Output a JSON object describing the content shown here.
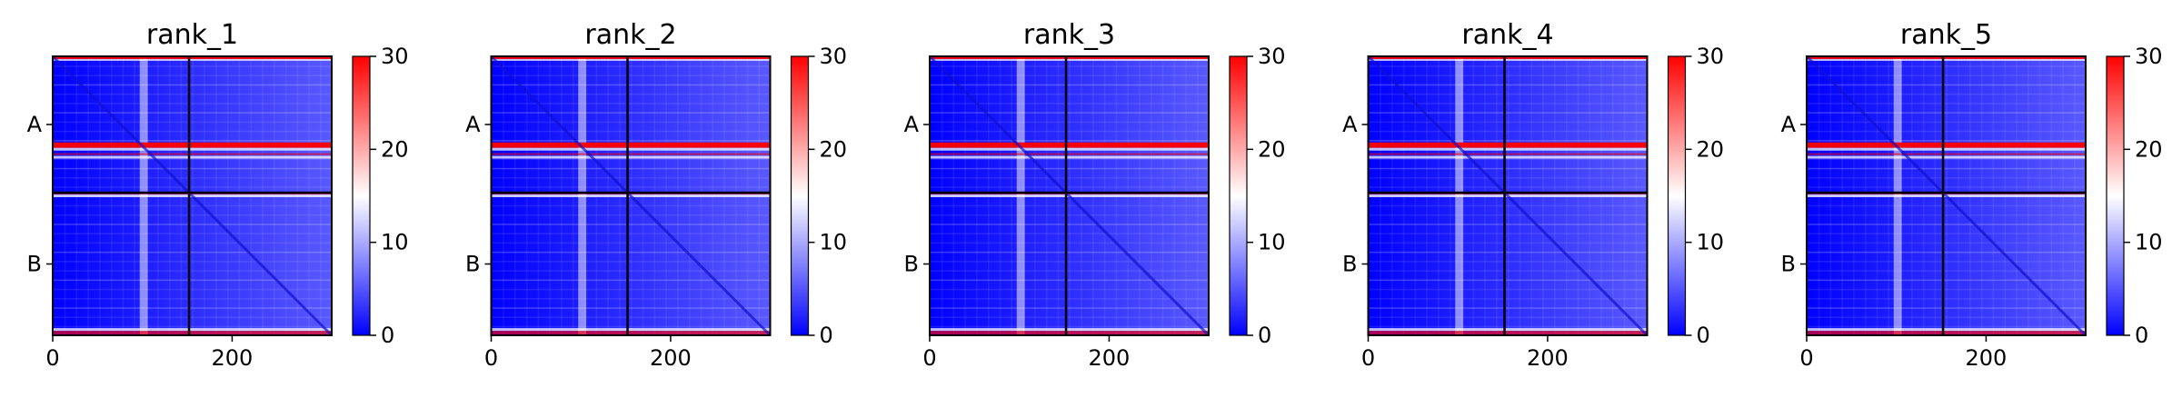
{
  "chart_data": [
    {
      "type": "heatmap",
      "title": "rank_1",
      "xticks": [
        "0",
        "200"
      ],
      "yticks": [
        "A",
        "B"
      ],
      "colorbar": {
        "min": 0,
        "max": 30,
        "ticks": [
          "0",
          "10",
          "20",
          "30"
        ],
        "colormap": "bwr"
      },
      "xlim": [
        0,
        311
      ],
      "chain_break": 152,
      "total_length": 311,
      "chains": [
        "A",
        "B"
      ]
    },
    {
      "type": "heatmap",
      "title": "rank_2",
      "xticks": [
        "0",
        "200"
      ],
      "yticks": [
        "A",
        "B"
      ],
      "colorbar": {
        "min": 0,
        "max": 30,
        "ticks": [
          "0",
          "10",
          "20",
          "30"
        ],
        "colormap": "bwr"
      },
      "xlim": [
        0,
        311
      ],
      "chain_break": 152,
      "total_length": 311,
      "chains": [
        "A",
        "B"
      ]
    },
    {
      "type": "heatmap",
      "title": "rank_3",
      "xticks": [
        "0",
        "200"
      ],
      "yticks": [
        "A",
        "B"
      ],
      "colorbar": {
        "min": 0,
        "max": 30,
        "ticks": [
          "0",
          "10",
          "20",
          "30"
        ],
        "colormap": "bwr"
      },
      "xlim": [
        0,
        311
      ],
      "chain_break": 152,
      "total_length": 311,
      "chains": [
        "A",
        "B"
      ]
    },
    {
      "type": "heatmap",
      "title": "rank_4",
      "xticks": [
        "0",
        "200"
      ],
      "yticks": [
        "A",
        "B"
      ],
      "colorbar": {
        "min": 0,
        "max": 30,
        "ticks": [
          "0",
          "10",
          "20",
          "30"
        ],
        "colormap": "bwr"
      },
      "xlim": [
        0,
        311
      ],
      "chain_break": 152,
      "total_length": 311,
      "chains": [
        "A",
        "B"
      ]
    },
    {
      "type": "heatmap",
      "title": "rank_5",
      "xticks": [
        "0",
        "200"
      ],
      "yticks": [
        "A",
        "B"
      ],
      "colorbar": {
        "min": 0,
        "max": 30,
        "ticks": [
          "0",
          "10",
          "20",
          "30"
        ],
        "colormap": "bwr"
      },
      "xlim": [
        0,
        311
      ],
      "chain_break": 152,
      "total_length": 311,
      "chains": [
        "A",
        "B"
      ]
    }
  ],
  "colors": {
    "low": "#0000ff",
    "mid": "#ffffff",
    "high": "#ff0000",
    "divider": "#000000"
  }
}
